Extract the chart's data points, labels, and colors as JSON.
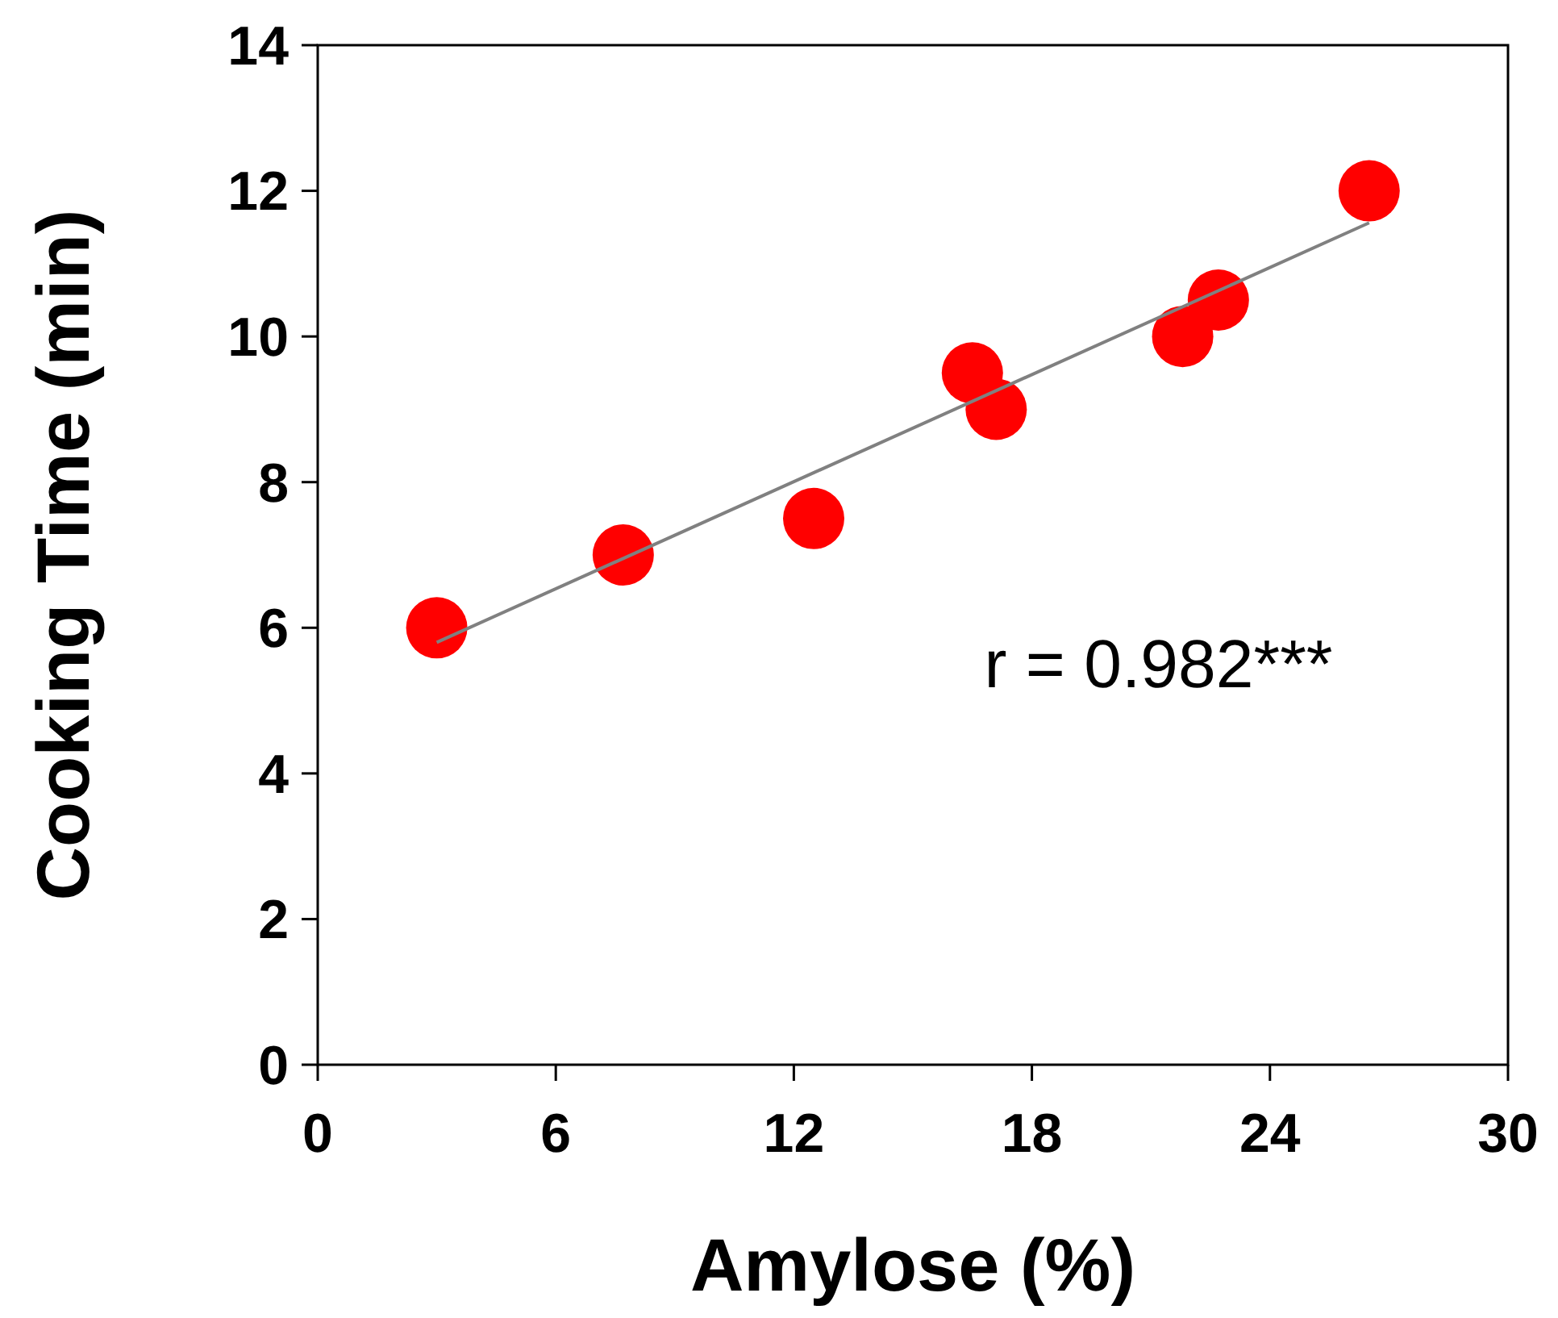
{
  "chart_data": {
    "type": "scatter",
    "xlabel": "Amylose (%)",
    "ylabel": "Cooking Time (min)",
    "xlim": [
      0,
      30
    ],
    "xticks": [
      0,
      6,
      12,
      18,
      24,
      30
    ],
    "ylim": [
      0,
      14
    ],
    "yticks": [
      0,
      2,
      4,
      6,
      8,
      10,
      12,
      14
    ],
    "grid": false,
    "annotations": [
      "r = 0.982***"
    ],
    "series": [
      {
        "color": "#ff0000",
        "marker": "circle",
        "x": [
          3,
          7.7,
          12.5,
          16.5,
          17.1,
          21.8,
          22.7,
          26.5
        ],
        "values": [
          6,
          7,
          7.5,
          9.5,
          9,
          10,
          10.5,
          12
        ]
      },
      {
        "type": "line",
        "color": "#808080",
        "line_style": "solid",
        "marker": "none",
        "x": [
          3,
          26.5
        ],
        "values": [
          5.8,
          11.56
        ]
      }
    ]
  }
}
